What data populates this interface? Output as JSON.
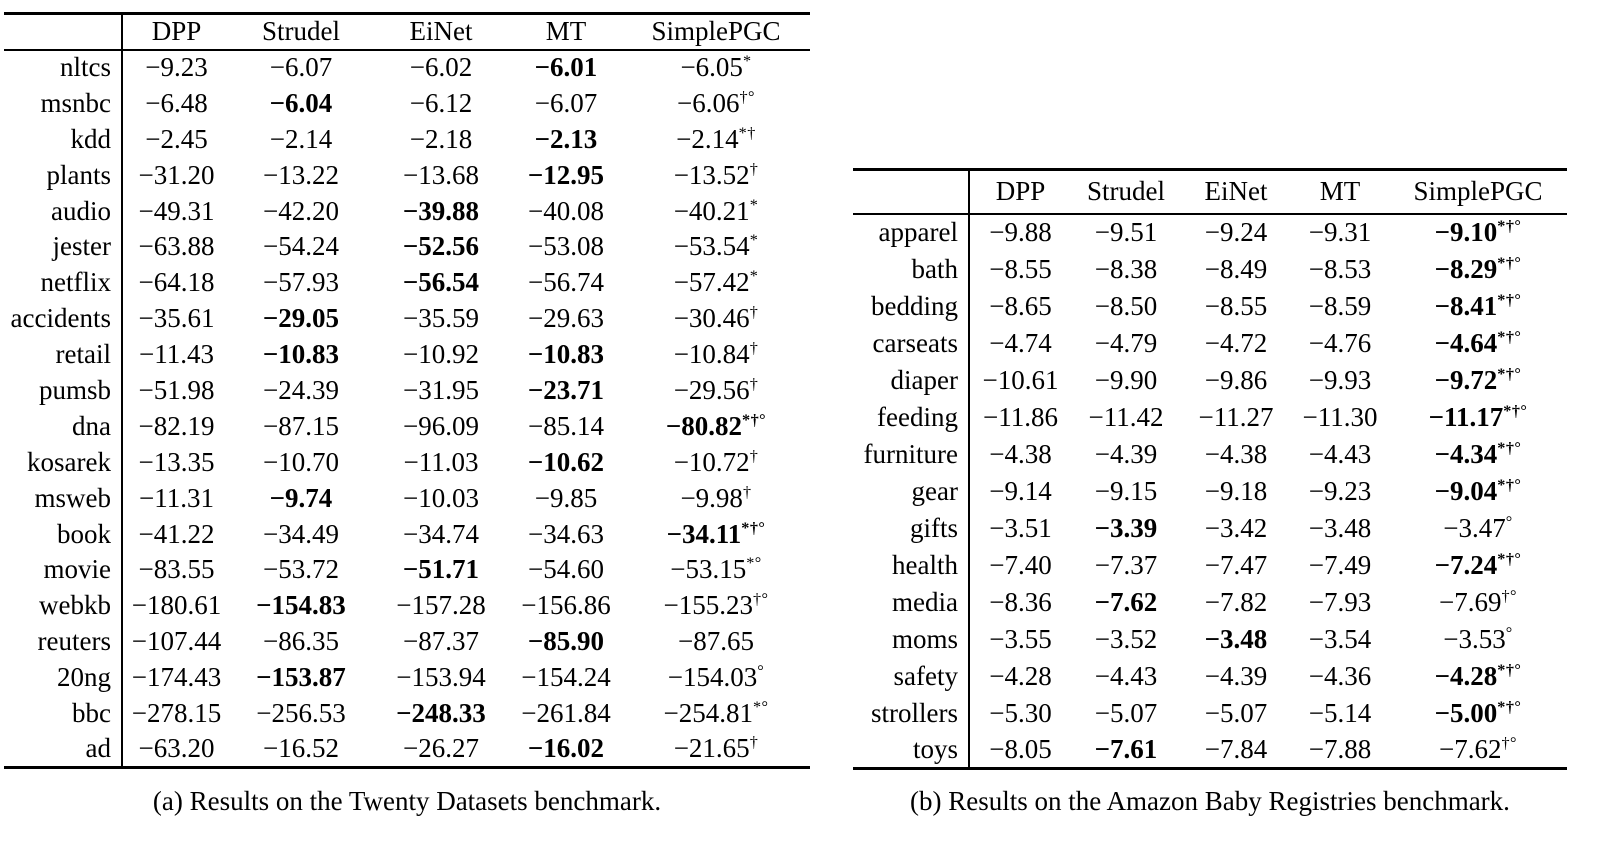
{
  "colors": {
    "text": "#000000",
    "background": "#ffffff",
    "rule": "#000000"
  },
  "tables": [
    {
      "caption": "(a) Results on the Twenty Datasets benchmark.",
      "columns": [
        "DPP",
        "Strudel",
        "EiNet",
        "MT",
        "SimplePGC"
      ],
      "rows": [
        {
          "name": "nltcs",
          "cells": [
            {
              "v": "−9.23"
            },
            {
              "v": "−6.07"
            },
            {
              "v": "−6.02"
            },
            {
              "v": "−6.01",
              "b": true
            },
            {
              "v": "−6.05",
              "s": "*"
            }
          ]
        },
        {
          "name": "msnbc",
          "cells": [
            {
              "v": "−6.48"
            },
            {
              "v": "−6.04",
              "b": true
            },
            {
              "v": "−6.12"
            },
            {
              "v": "−6.07"
            },
            {
              "v": "−6.06",
              "s": "†°"
            }
          ]
        },
        {
          "name": "kdd",
          "cells": [
            {
              "v": "−2.45"
            },
            {
              "v": "−2.14"
            },
            {
              "v": "−2.18"
            },
            {
              "v": "−2.13",
              "b": true
            },
            {
              "v": "−2.14",
              "s": "*†"
            }
          ]
        },
        {
          "name": "plants",
          "cells": [
            {
              "v": "−31.20"
            },
            {
              "v": "−13.22"
            },
            {
              "v": "−13.68"
            },
            {
              "v": "−12.95",
              "b": true
            },
            {
              "v": "−13.52",
              "s": "†"
            }
          ]
        },
        {
          "name": "audio",
          "cells": [
            {
              "v": "−49.31"
            },
            {
              "v": "−42.20"
            },
            {
              "v": "−39.88",
              "b": true
            },
            {
              "v": "−40.08"
            },
            {
              "v": "−40.21",
              "s": "*"
            }
          ]
        },
        {
          "name": "jester",
          "cells": [
            {
              "v": "−63.88"
            },
            {
              "v": "−54.24"
            },
            {
              "v": "−52.56",
              "b": true
            },
            {
              "v": "−53.08"
            },
            {
              "v": "−53.54",
              "s": "*"
            }
          ]
        },
        {
          "name": "netflix",
          "cells": [
            {
              "v": "−64.18"
            },
            {
              "v": "−57.93"
            },
            {
              "v": "−56.54",
              "b": true
            },
            {
              "v": "−56.74"
            },
            {
              "v": "−57.42",
              "s": "*"
            }
          ]
        },
        {
          "name": "accidents",
          "cells": [
            {
              "v": "−35.61"
            },
            {
              "v": "−29.05",
              "b": true
            },
            {
              "v": "−35.59"
            },
            {
              "v": "−29.63"
            },
            {
              "v": "−30.46",
              "s": "†"
            }
          ]
        },
        {
          "name": "retail",
          "cells": [
            {
              "v": "−11.43"
            },
            {
              "v": "−10.83",
              "b": true
            },
            {
              "v": "−10.92"
            },
            {
              "v": "−10.83",
              "b": true
            },
            {
              "v": "−10.84",
              "s": "†"
            }
          ]
        },
        {
          "name": "pumsb",
          "cells": [
            {
              "v": "−51.98"
            },
            {
              "v": "−24.39"
            },
            {
              "v": "−31.95"
            },
            {
              "v": "−23.71",
              "b": true
            },
            {
              "v": "−29.56",
              "s": "†"
            }
          ]
        },
        {
          "name": "dna",
          "cells": [
            {
              "v": "−82.19"
            },
            {
              "v": "−87.15"
            },
            {
              "v": "−96.09"
            },
            {
              "v": "−85.14"
            },
            {
              "v": "−80.82",
              "b": true,
              "s": "*†°"
            }
          ]
        },
        {
          "name": "kosarek",
          "cells": [
            {
              "v": "−13.35"
            },
            {
              "v": "−10.70"
            },
            {
              "v": "−11.03"
            },
            {
              "v": "−10.62",
              "b": true
            },
            {
              "v": "−10.72",
              "s": "†"
            }
          ]
        },
        {
          "name": "msweb",
          "cells": [
            {
              "v": "−11.31"
            },
            {
              "v": "−9.74",
              "b": true
            },
            {
              "v": "−10.03"
            },
            {
              "v": "−9.85"
            },
            {
              "v": "−9.98",
              "s": "†"
            }
          ]
        },
        {
          "name": "book",
          "cells": [
            {
              "v": "−41.22"
            },
            {
              "v": "−34.49"
            },
            {
              "v": "−34.74"
            },
            {
              "v": "−34.63"
            },
            {
              "v": "−34.11",
              "b": true,
              "s": "*†°"
            }
          ]
        },
        {
          "name": "movie",
          "cells": [
            {
              "v": "−83.55"
            },
            {
              "v": "−53.72"
            },
            {
              "v": "−51.71",
              "b": true
            },
            {
              "v": "−54.60"
            },
            {
              "v": "−53.15",
              "s": "*°"
            }
          ]
        },
        {
          "name": "webkb",
          "cells": [
            {
              "v": "−180.61"
            },
            {
              "v": "−154.83",
              "b": true
            },
            {
              "v": "−157.28"
            },
            {
              "v": "−156.86"
            },
            {
              "v": "−155.23",
              "s": "†°"
            }
          ]
        },
        {
          "name": "reuters",
          "cells": [
            {
              "v": "−107.44"
            },
            {
              "v": "−86.35"
            },
            {
              "v": "−87.37"
            },
            {
              "v": "−85.90",
              "b": true
            },
            {
              "v": "−87.65"
            }
          ]
        },
        {
          "name": "20ng",
          "cells": [
            {
              "v": "−174.43"
            },
            {
              "v": "−153.87",
              "b": true
            },
            {
              "v": "−153.94"
            },
            {
              "v": "−154.24"
            },
            {
              "v": "−154.03",
              "s": "°"
            }
          ]
        },
        {
          "name": "bbc",
          "cells": [
            {
              "v": "−278.15"
            },
            {
              "v": "−256.53"
            },
            {
              "v": "−248.33",
              "b": true
            },
            {
              "v": "−261.84"
            },
            {
              "v": "−254.81",
              "s": "*°"
            }
          ]
        },
        {
          "name": "ad",
          "cells": [
            {
              "v": "−63.20"
            },
            {
              "v": "−16.52"
            },
            {
              "v": "−26.27"
            },
            {
              "v": "−16.02",
              "b": true
            },
            {
              "v": "−21.65",
              "s": "†"
            }
          ]
        }
      ]
    },
    {
      "caption": "(b) Results on the Amazon Baby Registries benchmark.",
      "columns": [
        "DPP",
        "Strudel",
        "EiNet",
        "MT",
        "SimplePGC"
      ],
      "rows": [
        {
          "name": "apparel",
          "cells": [
            {
              "v": "−9.88"
            },
            {
              "v": "−9.51"
            },
            {
              "v": "−9.24"
            },
            {
              "v": "−9.31"
            },
            {
              "v": "−9.10",
              "b": true,
              "s": "*†°"
            }
          ]
        },
        {
          "name": "bath",
          "cells": [
            {
              "v": "−8.55"
            },
            {
              "v": "−8.38"
            },
            {
              "v": "−8.49"
            },
            {
              "v": "−8.53"
            },
            {
              "v": "−8.29",
              "b": true,
              "s": "*†°"
            }
          ]
        },
        {
          "name": "bedding",
          "cells": [
            {
              "v": "−8.65"
            },
            {
              "v": "−8.50"
            },
            {
              "v": "−8.55"
            },
            {
              "v": "−8.59"
            },
            {
              "v": "−8.41",
              "b": true,
              "s": "*†°"
            }
          ]
        },
        {
          "name": "carseats",
          "cells": [
            {
              "v": "−4.74"
            },
            {
              "v": "−4.79"
            },
            {
              "v": "−4.72"
            },
            {
              "v": "−4.76"
            },
            {
              "v": "−4.64",
              "b": true,
              "s": "*†°"
            }
          ]
        },
        {
          "name": "diaper",
          "cells": [
            {
              "v": "−10.61"
            },
            {
              "v": "−9.90"
            },
            {
              "v": "−9.86"
            },
            {
              "v": "−9.93"
            },
            {
              "v": "−9.72",
              "b": true,
              "s": "*†°"
            }
          ]
        },
        {
          "name": "feeding",
          "cells": [
            {
              "v": "−11.86"
            },
            {
              "v": "−11.42"
            },
            {
              "v": "−11.27"
            },
            {
              "v": "−11.30"
            },
            {
              "v": "−11.17",
              "b": true,
              "s": "*†°"
            }
          ]
        },
        {
          "name": "furniture",
          "cells": [
            {
              "v": "−4.38"
            },
            {
              "v": "−4.39"
            },
            {
              "v": "−4.38"
            },
            {
              "v": "−4.43"
            },
            {
              "v": "−4.34",
              "b": true,
              "s": "*†°"
            }
          ]
        },
        {
          "name": "gear",
          "cells": [
            {
              "v": "−9.14"
            },
            {
              "v": "−9.15"
            },
            {
              "v": "−9.18"
            },
            {
              "v": "−9.23"
            },
            {
              "v": "−9.04",
              "b": true,
              "s": "*†°"
            }
          ]
        },
        {
          "name": "gifts",
          "cells": [
            {
              "v": "−3.51"
            },
            {
              "v": "−3.39",
              "b": true
            },
            {
              "v": "−3.42"
            },
            {
              "v": "−3.48"
            },
            {
              "v": "−3.47",
              "s": "°"
            }
          ]
        },
        {
          "name": "health",
          "cells": [
            {
              "v": "−7.40"
            },
            {
              "v": "−7.37"
            },
            {
              "v": "−7.47"
            },
            {
              "v": "−7.49"
            },
            {
              "v": "−7.24",
              "b": true,
              "s": "*†°"
            }
          ]
        },
        {
          "name": "media",
          "cells": [
            {
              "v": "−8.36"
            },
            {
              "v": "−7.62",
              "b": true
            },
            {
              "v": "−7.82"
            },
            {
              "v": "−7.93"
            },
            {
              "v": "−7.69",
              "s": "†°"
            }
          ]
        },
        {
          "name": "moms",
          "cells": [
            {
              "v": "−3.55"
            },
            {
              "v": "−3.52"
            },
            {
              "v": "−3.48",
              "b": true
            },
            {
              "v": "−3.54"
            },
            {
              "v": "−3.53",
              "s": "°"
            }
          ]
        },
        {
          "name": "safety",
          "cells": [
            {
              "v": "−4.28"
            },
            {
              "v": "−4.43"
            },
            {
              "v": "−4.39"
            },
            {
              "v": "−4.36"
            },
            {
              "v": "−4.28",
              "b": true,
              "s": "*†°"
            }
          ]
        },
        {
          "name": "strollers",
          "cells": [
            {
              "v": "−5.30"
            },
            {
              "v": "−5.07"
            },
            {
              "v": "−5.07"
            },
            {
              "v": "−5.14"
            },
            {
              "v": "−5.00",
              "b": true,
              "s": "*†°"
            }
          ]
        },
        {
          "name": "toys",
          "cells": [
            {
              "v": "−8.05"
            },
            {
              "v": "−7.61",
              "b": true
            },
            {
              "v": "−7.84"
            },
            {
              "v": "−7.88"
            },
            {
              "v": "−7.62",
              "s": "†°"
            }
          ]
        }
      ]
    }
  ]
}
